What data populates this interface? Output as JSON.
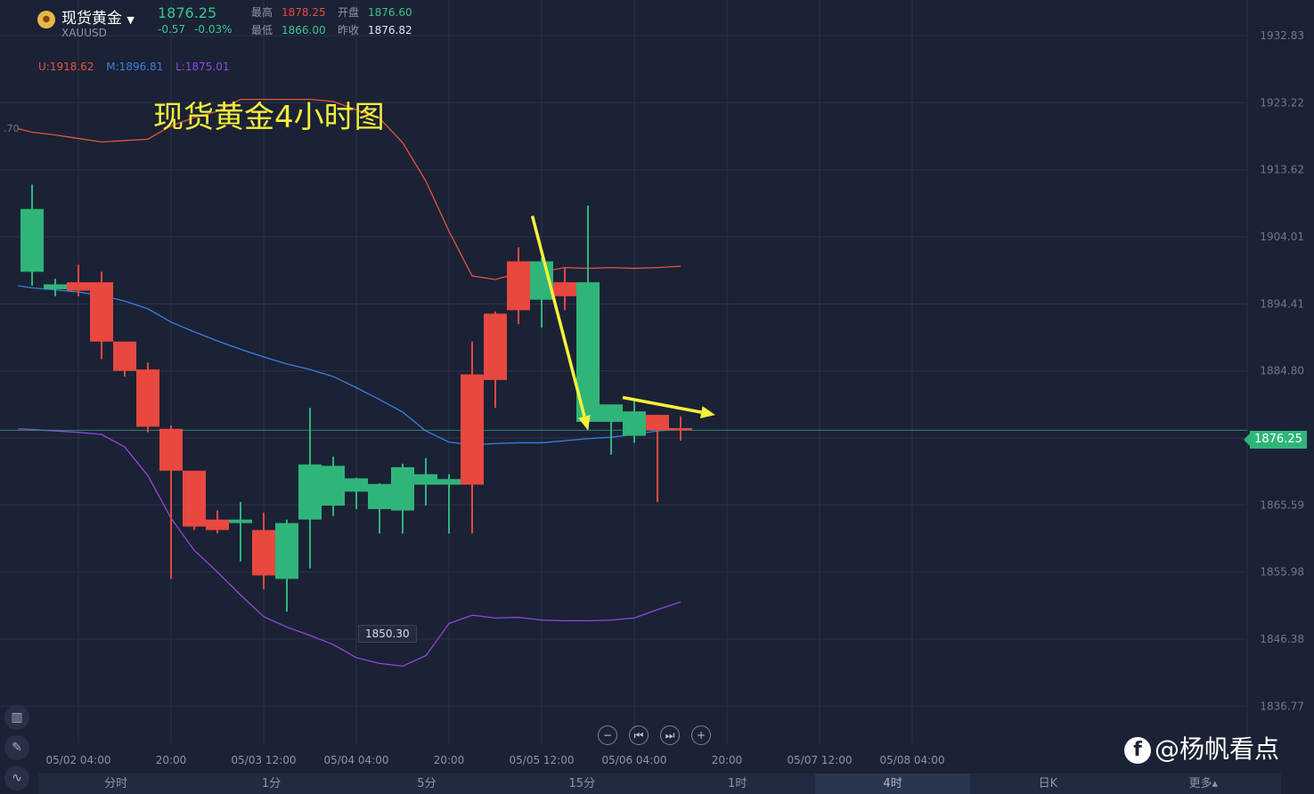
{
  "header": {
    "symbol_name": "现货黄金",
    "symbol_code": "XAUUSD",
    "price": "1876.25",
    "change": "-0.57",
    "change_pct": "-0.03%",
    "high_label": "最高",
    "high_value": "1878.25",
    "open_label": "开盘",
    "open_value": "1876.60",
    "low_label": "最低",
    "low_value": "1866.00",
    "prev_close_label": "昨收",
    "prev_close_value": "1876.82"
  },
  "indicator": {
    "upper": "U:1918.62",
    "middle": "M:1896.81",
    "lower": "L:1875.01"
  },
  "annotation_title": "现货黄金4小时图",
  "left_partial_label": ".70",
  "current_price_badge": "1876.25",
  "low_marker": "1850.30",
  "controls": [
    "−",
    "⏮",
    "⏭",
    "+"
  ],
  "tools": [
    "chart-tool",
    "pen-tool",
    "indicator-tool"
  ],
  "timeframe_tabs": [
    {
      "label": "分时",
      "active": false
    },
    {
      "label": "1分",
      "active": false
    },
    {
      "label": "5分",
      "active": false
    },
    {
      "label": "15分",
      "active": false
    },
    {
      "label": "1时",
      "active": false
    },
    {
      "label": "4时",
      "active": true
    },
    {
      "label": "日K",
      "active": false
    },
    {
      "label": "更多▴",
      "active": false
    }
  ],
  "watermark": "@杨帆看点",
  "colors": {
    "up": "#2fb57a",
    "down": "#e8483f",
    "upper_band": "#e4553a",
    "middle_band": "#3c7de0",
    "lower_band": "#8f47e0",
    "arrow": "#f5f23a",
    "background": "#1b2235"
  },
  "chart_data": {
    "type": "candlestick",
    "ylim": [
      1831.45,
      1937.94
    ],
    "y_ticks": [
      "1932.83",
      "1923.22",
      "1913.62",
      "1904.01",
      "1894.41",
      "1884.80",
      "1875.20",
      "1865.59",
      "1855.98",
      "1846.38",
      "1836.77"
    ],
    "x_tick_labels": [
      "05/02 04:00",
      "20:00",
      "05/03 12:00",
      "05/04 04:00",
      "20:00",
      "05/05 12:00",
      "05/06 04:00",
      "20:00",
      "05/07 12:00",
      "05/08 04:00"
    ],
    "x_tick_index": [
      2,
      6,
      10,
      14,
      18,
      22,
      26,
      30,
      34,
      38
    ],
    "x_range": [
      -0.6,
      39.5
    ],
    "candles": [
      {
        "o": 1899.0,
        "h": 1911.5,
        "l": 1897.0,
        "c": 1908.0
      },
      {
        "o": 1896.5,
        "h": 1898.0,
        "l": 1895.5,
        "c": 1897.2
      },
      {
        "o": 1897.5,
        "h": 1900.0,
        "l": 1895.5,
        "c": 1896.3
      },
      {
        "o": 1897.5,
        "h": 1899.0,
        "l": 1886.5,
        "c": 1889.0
      },
      {
        "o": 1889.0,
        "h": 1889.0,
        "l": 1884.0,
        "c": 1884.8
      },
      {
        "o": 1885.0,
        "h": 1886.0,
        "l": 1876.0,
        "c": 1876.8
      },
      {
        "o": 1876.5,
        "h": 1877.0,
        "l": 1855.0,
        "c": 1870.5
      },
      {
        "o": 1870.5,
        "h": 1870.5,
        "l": 1862.0,
        "c": 1862.5
      },
      {
        "o": 1863.5,
        "h": 1864.8,
        "l": 1861.5,
        "c": 1862.0
      },
      {
        "o": 1863.0,
        "h": 1866.0,
        "l": 1857.5,
        "c": 1863.5
      },
      {
        "o": 1862.0,
        "h": 1864.5,
        "l": 1853.5,
        "c": 1855.5
      },
      {
        "o": 1855.0,
        "h": 1863.5,
        "l": 1850.3,
        "c": 1863.0
      },
      {
        "o": 1863.5,
        "h": 1879.5,
        "l": 1856.5,
        "c": 1871.4
      },
      {
        "o": 1865.5,
        "h": 1872.5,
        "l": 1864.0,
        "c": 1871.2
      },
      {
        "o": 1867.5,
        "h": 1869.5,
        "l": 1865.0,
        "c": 1869.4
      },
      {
        "o": 1865.0,
        "h": 1868.7,
        "l": 1861.5,
        "c": 1868.6
      },
      {
        "o": 1864.8,
        "h": 1871.5,
        "l": 1861.5,
        "c": 1871.0
      },
      {
        "o": 1868.5,
        "h": 1872.3,
        "l": 1865.5,
        "c": 1870.0
      },
      {
        "o": 1868.5,
        "h": 1870.0,
        "l": 1861.5,
        "c": 1869.3
      },
      {
        "o": 1884.3,
        "h": 1889.0,
        "l": 1861.5,
        "c": 1868.5
      },
      {
        "o": 1893.0,
        "h": 1893.3,
        "l": 1879.5,
        "c": 1883.5
      },
      {
        "o": 1900.5,
        "h": 1902.5,
        "l": 1891.5,
        "c": 1893.5
      },
      {
        "o": 1895.0,
        "h": 1901.0,
        "l": 1891.0,
        "c": 1900.5
      },
      {
        "o": 1897.5,
        "h": 1899.5,
        "l": 1893.5,
        "c": 1895.5
      },
      {
        "o": 1877.5,
        "h": 1908.5,
        "l": 1876.3,
        "c": 1897.5
      },
      {
        "o": 1877.5,
        "h": 1880.0,
        "l": 1872.8,
        "c": 1880.0
      },
      {
        "o": 1875.5,
        "h": 1880.5,
        "l": 1874.5,
        "c": 1879.0
      },
      {
        "o": 1878.5,
        "h": 1878.5,
        "l": 1866.0,
        "c": 1876.3
      },
      {
        "o": 1876.6,
        "h": 1878.3,
        "l": 1874.8,
        "c": 1876.3
      }
    ],
    "upper_band": [
      1919.5,
      1919.0,
      1918.6,
      1918.1,
      1917.6,
      1917.8,
      1918.0,
      1919.9,
      1921.1,
      1922.0,
      1923.7,
      1923.7,
      1923.7,
      1923.7,
      1923.4,
      1922.2,
      1921.0,
      1917.5,
      1912.0,
      1904.8,
      1898.4,
      1897.9,
      1898.8,
      1899.0,
      1899.6,
      1899.5,
      1899.6,
      1899.5,
      1899.6,
      1899.8
    ],
    "middle_band": [
      1897.0,
      1896.7,
      1896.4,
      1896.1,
      1895.6,
      1894.8,
      1893.7,
      1891.8,
      1890.4,
      1889.1,
      1887.9,
      1886.8,
      1885.8,
      1885.0,
      1884.0,
      1882.4,
      1880.7,
      1878.9,
      1876.2,
      1874.6,
      1874.2,
      1874.4,
      1874.5,
      1874.5,
      1874.8,
      1875.1,
      1875.3,
      1875.7,
      1876.2,
      1876.5
    ],
    "lower_band": [
      1876.5,
      1876.4,
      1876.2,
      1876.0,
      1875.7,
      1873.9,
      1869.8,
      1863.7,
      1859.1,
      1856.0,
      1852.7,
      1849.6,
      1848.1,
      1846.9,
      1845.6,
      1843.7,
      1842.9,
      1842.5,
      1844.0,
      1848.6,
      1849.8,
      1849.4,
      1849.5,
      1849.1,
      1849.0,
      1849.0,
      1849.1,
      1849.4,
      1850.6,
      1851.7
    ],
    "band_x_start": -0.6,
    "arrows": [
      {
        "from": [
          21.6,
          1907.0
        ],
        "to": [
          24.0,
          1876.3
        ]
      },
      {
        "from": [
          25.5,
          1881.0
        ],
        "to": [
          29.5,
          1878.5
        ]
      }
    ]
  }
}
